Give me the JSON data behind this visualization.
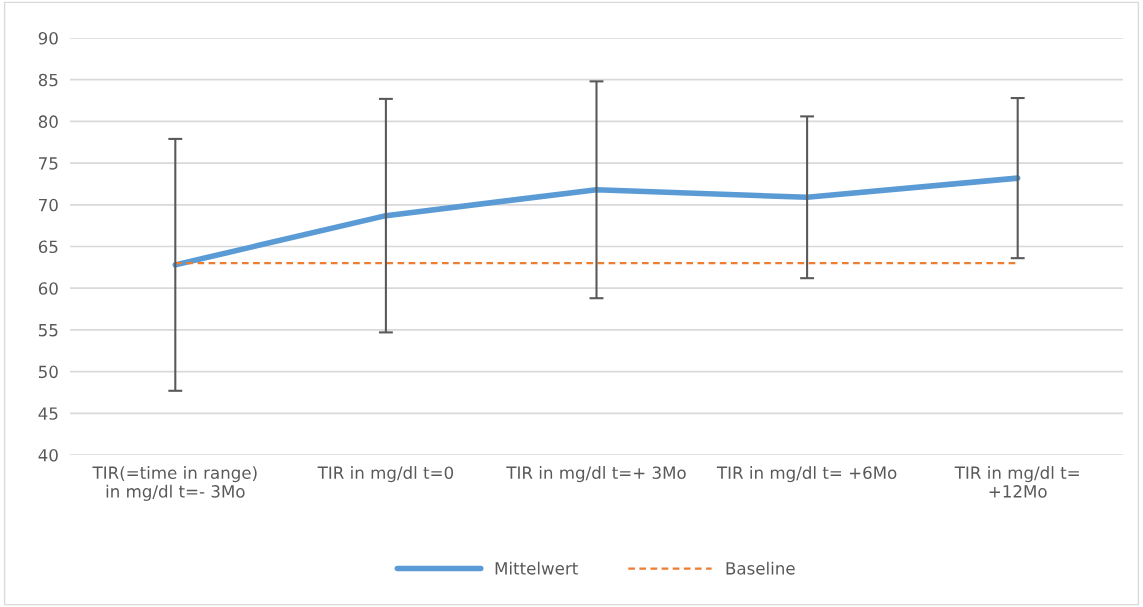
{
  "chart_data": {
    "type": "line",
    "categories": [
      "TIR(=time in range) in mg/dl t=- 3Mo",
      "TIR in mg/dl t=0",
      "TIR in mg/dl t=+ 3Mo",
      "TIR in mg/dl t= +6Mo",
      "TIR in mg/dl t= +12Mo"
    ],
    "series": [
      {
        "name": "Mittelwert",
        "color": "#5b9bd5",
        "values": [
          62.8,
          68.7,
          71.8,
          70.9,
          73.2
        ],
        "errors": [
          15.1,
          14.0,
          13.0,
          9.7,
          9.6
        ],
        "line_style": "solid"
      },
      {
        "name": "Baseline",
        "color": "#ed7d31",
        "values": [
          63.0,
          63.0,
          63.0,
          63.0,
          63.0
        ],
        "line_style": "dashed"
      }
    ],
    "ylim": [
      40,
      90
    ],
    "yticks": [
      40,
      45,
      50,
      55,
      60,
      65,
      70,
      75,
      80,
      85,
      90
    ],
    "grid": "y",
    "legend": "bottom",
    "marker": "none"
  }
}
